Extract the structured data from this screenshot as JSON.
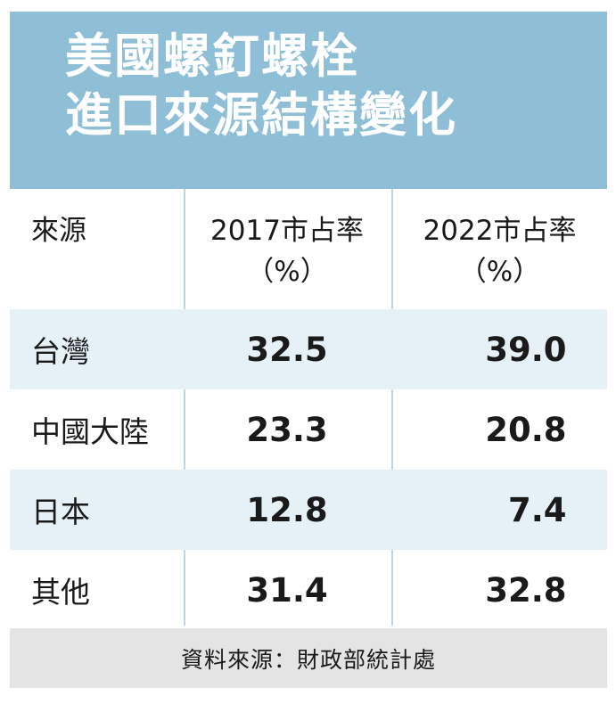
{
  "title": {
    "line1": "美國螺釘螺栓",
    "line2": "進口來源結構變化"
  },
  "table": {
    "headers": {
      "source": "來源",
      "col2017": "2017市占率",
      "col2017_unit": "（%）",
      "col2022": "2022市占率",
      "col2022_unit": "（%）"
    },
    "rows": [
      {
        "source": "台灣",
        "v2017": "32.5",
        "v2022": "39.0"
      },
      {
        "source": "中國大陸",
        "v2017": "23.3",
        "v2022": "20.8"
      },
      {
        "source": "日本",
        "v2017": "12.8",
        "v2022": "7.4"
      },
      {
        "source": "其他",
        "v2017": "31.4",
        "v2022": "32.8"
      }
    ]
  },
  "footer": {
    "source_note": "資料來源：財政部統計處"
  },
  "colors": {
    "header_bg": "#8fbfd6",
    "row_shade": "#e6f1f7",
    "footer_bg": "#e4e4e4",
    "divider": "#b9d6e5"
  },
  "chart_data": {
    "type": "table",
    "title": "美國螺釘螺栓進口來源結構變化",
    "columns": [
      "來源",
      "2017市占率（%）",
      "2022市占率（%）"
    ],
    "categories": [
      "台灣",
      "中國大陸",
      "日本",
      "其他"
    ],
    "series": [
      {
        "name": "2017市占率（%）",
        "values": [
          32.5,
          23.3,
          12.8,
          31.4
        ]
      },
      {
        "name": "2022市占率（%）",
        "values": [
          39.0,
          20.8,
          7.4,
          32.8
        ]
      }
    ],
    "source": "資料來源：財政部統計處"
  }
}
